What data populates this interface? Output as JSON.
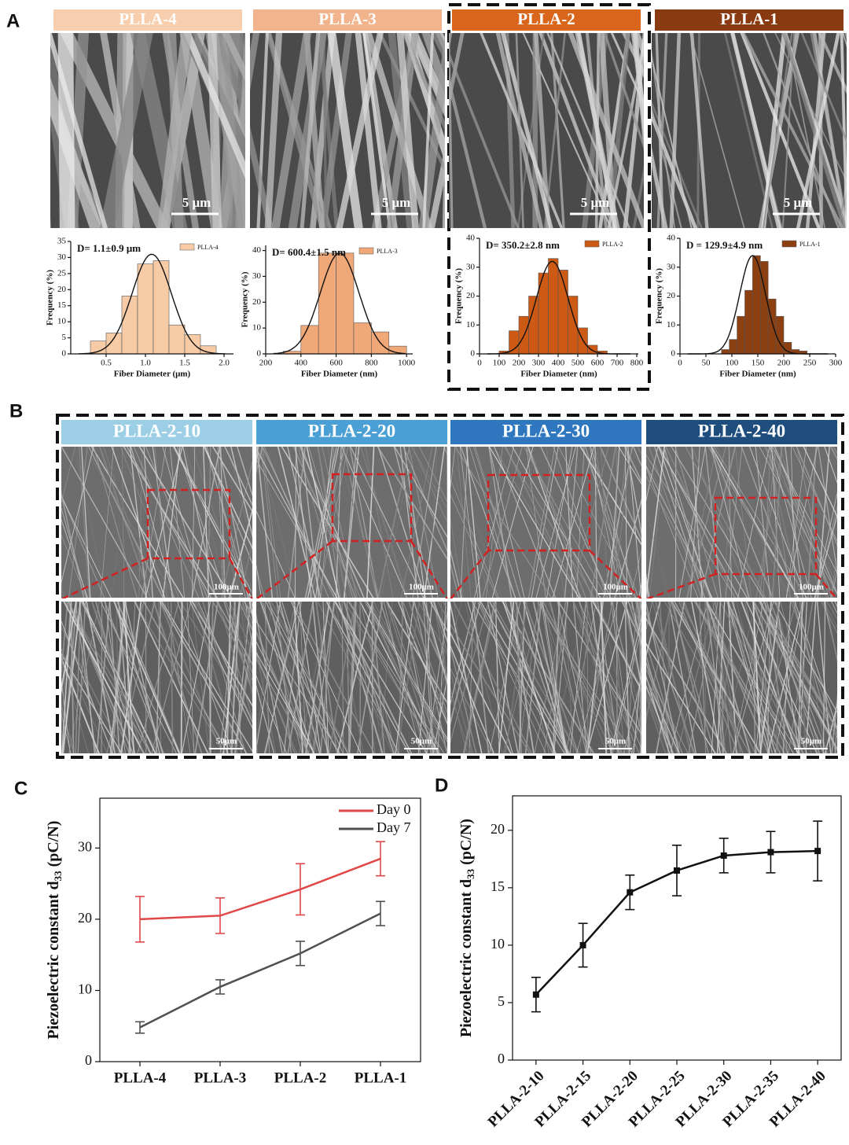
{
  "panels": {
    "labels": [
      "A",
      "B",
      "C",
      "D"
    ]
  },
  "sem_a": {
    "labels": [
      "PLLA-4",
      "PLLA-3",
      "PLLA-2",
      "PLLA-1"
    ],
    "scale_bars": [
      "5 μm",
      "5 μm",
      "5 μm",
      "5 μm"
    ]
  },
  "sem_b": {
    "labels": [
      "PLLA-2-10",
      "PLLA-2-20",
      "PLLA-2-30",
      "PLLA-2-40"
    ],
    "scale_top": [
      "100μm",
      "100μm",
      "100μm",
      "100μm"
    ],
    "scale_bottom": [
      "50μm",
      "50μm",
      "50μm",
      "50μm"
    ]
  },
  "chart_data": [
    {
      "type": "histogram",
      "annotation": "D= 1.1±0.9 μm",
      "name": "PLLA-4",
      "color": "#f6cba5",
      "xlabel": "Fiber Diameter (μm)",
      "ylabel": "Frequency (%)",
      "bins": [
        0.3,
        0.5,
        0.7,
        0.9,
        1.1,
        1.3,
        1.5,
        1.7,
        1.9
      ],
      "values": [
        4,
        6.5,
        18,
        28,
        29,
        9,
        6,
        2.5
      ],
      "fit": {
        "mean": 1.08,
        "sd": 0.25,
        "peak": 31
      },
      "xlim": [
        0.05,
        2.12
      ],
      "xticks": [
        0.5,
        {
          "value": 1,
          "label": "1.0"
        },
        1.5,
        {
          "value": 2,
          "label": "2.0"
        }
      ],
      "ylim": [
        0,
        35
      ],
      "yticks": [
        0,
        5,
        10,
        15,
        20,
        25,
        30,
        35
      ]
    },
    {
      "type": "histogram",
      "annotation": "D= 600.4±1.5 nm",
      "name": "PLLA-3",
      "color": "#f0a878",
      "xlabel": "Fiber Diameter (nm)",
      "ylabel": "Frequency (%)",
      "bins": [
        300,
        400,
        500,
        600,
        700,
        800,
        900,
        1000
      ],
      "values": [
        1,
        11,
        39,
        39,
        12,
        8.5,
        3
      ],
      "fit": {
        "mean": 620,
        "sd": 110,
        "peak": 39
      },
      "xlim": [
        200,
        1035
      ],
      "xticks": [
        200,
        400,
        600,
        800,
        1000
      ],
      "ylim": [
        0,
        42
      ],
      "yticks": [
        0,
        10,
        20,
        30,
        40
      ]
    },
    {
      "type": "histogram",
      "annotation": "D= 350.2±2.8 nm",
      "name": "PLLA-2",
      "color": "#cc5a14",
      "xlabel": "Fiber Diameter (nm)",
      "ylabel": "Frequency (%)",
      "bins": [
        100,
        150,
        200,
        250,
        300,
        350,
        400,
        450,
        500,
        550,
        600,
        650
      ],
      "values": [
        1,
        8,
        13,
        20,
        28,
        33,
        29,
        20,
        9,
        3,
        1
      ],
      "fit": {
        "mean": 370,
        "sd": 80,
        "peak": 32
      },
      "xlim": [
        0,
        808
      ],
      "xticks": [
        0,
        100,
        200,
        300,
        400,
        500,
        600,
        700,
        800
      ],
      "ylim": [
        0,
        40
      ],
      "yticks": [
        0,
        10,
        20,
        30,
        40
      ]
    },
    {
      "type": "histogram",
      "annotation": "D = 129.9±4.9 nm",
      "name": "PLLA-1",
      "color": "#8c3f10",
      "xlabel": "Fiber Diameter (nm)",
      "ylabel": "Frequency (%)",
      "bins": [
        80,
        95,
        110,
        125,
        140,
        155,
        170,
        185,
        200,
        215,
        230,
        245
      ],
      "values": [
        1.5,
        5,
        13,
        22,
        34,
        32,
        19,
        13,
        4,
        1.5,
        1
      ],
      "fit": {
        "mean": 140,
        "sd": 25,
        "peak": 34
      },
      "xlim": [
        0,
        300
      ],
      "xticks": [
        0,
        50,
        100,
        150,
        200,
        250,
        300
      ],
      "ylim": [
        0,
        40
      ],
      "yticks": [
        0,
        10,
        20,
        30,
        40
      ]
    },
    {
      "type": "line",
      "ylabel": [
        "Piezoelectric constant d",
        "33",
        " (pC/N)"
      ],
      "categories": [
        "PLLA-4",
        "PLLA-3",
        "PLLA-2",
        "PLLA-1"
      ],
      "series": [
        {
          "name": "Day 0",
          "color": "#e04848",
          "values": [
            20,
            20.5,
            24.2,
            28.5
          ],
          "errors": [
            3.2,
            2.5,
            3.6,
            2.4
          ]
        },
        {
          "name": "Day 7",
          "color": "#505050",
          "values": [
            4.8,
            10.5,
            15.2,
            20.8
          ],
          "errors": [
            0.8,
            1,
            1.7,
            1.7
          ]
        }
      ],
      "ylim": [
        0,
        37
      ],
      "yticks": [
        0,
        10,
        20,
        30
      ],
      "legend": "upper right",
      "markers": false
    },
    {
      "type": "line",
      "ylabel": [
        "Piezoelectric constant d",
        "33",
        " (pC/N)"
      ],
      "categories": [
        "PLLA-2-10",
        "PLLA-2-15",
        "PLLA-2-20",
        "PLLA-2-25",
        "PLLA-2-30",
        "PLLA-2-35",
        "PLLA-2-40"
      ],
      "series": [
        {
          "color": "#111111",
          "values": [
            5.7,
            10,
            14.6,
            16.5,
            17.8,
            18.1,
            18.2
          ],
          "errors": [
            1.5,
            1.9,
            1.5,
            2.2,
            1.5,
            1.8,
            2.6
          ]
        }
      ],
      "ylim": [
        0,
        23
      ],
      "yticks": [
        0,
        5,
        10,
        15,
        20
      ],
      "markers": true,
      "rotate_labels": true
    }
  ]
}
